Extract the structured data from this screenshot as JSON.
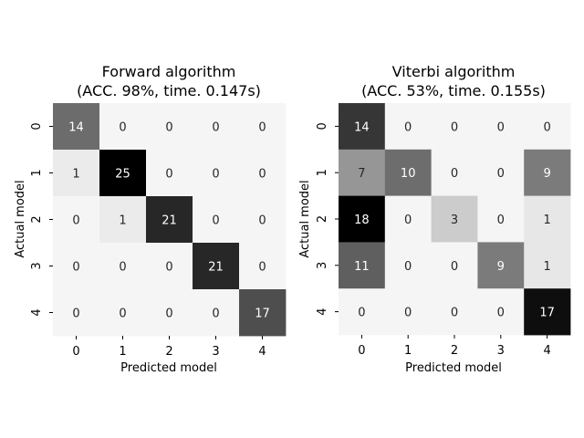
{
  "chart_data": [
    {
      "type": "heatmap",
      "title_line1": "Forward algorithm",
      "title_line2": "(ACC. 98%, time. 0.147s)",
      "xlabel": "Predicted model",
      "ylabel": "Actual model",
      "x_ticks": [
        "0",
        "1",
        "2",
        "3",
        "4"
      ],
      "y_ticks": [
        "0",
        "1",
        "2",
        "3",
        "4"
      ],
      "colormap": "gray_r",
      "vmin": 0,
      "vmax": 25,
      "values": [
        [
          14,
          0,
          0,
          0,
          0
        ],
        [
          1,
          25,
          0,
          0,
          0
        ],
        [
          0,
          1,
          21,
          0,
          0
        ],
        [
          0,
          0,
          0,
          21,
          0
        ],
        [
          0,
          0,
          0,
          0,
          17
        ]
      ],
      "colorbar": false,
      "grid": false
    },
    {
      "type": "heatmap",
      "title_line1": "Viterbi algorithm",
      "title_line2": "(ACC. 53%, time. 0.155s)",
      "xlabel": "Predicted model",
      "ylabel": "Actual model",
      "x_ticks": [
        "0",
        "1",
        "2",
        "3",
        "4"
      ],
      "y_ticks": [
        "0",
        "1",
        "2",
        "3",
        "4"
      ],
      "colormap": "gray_r",
      "vmin": 0,
      "vmax": 18,
      "values": [
        [
          14,
          0,
          0,
          0,
          0
        ],
        [
          7,
          10,
          0,
          0,
          9
        ],
        [
          18,
          0,
          3,
          0,
          1
        ],
        [
          11,
          0,
          0,
          9,
          1
        ],
        [
          0,
          0,
          0,
          0,
          17
        ]
      ],
      "colorbar": false,
      "grid": false
    }
  ]
}
